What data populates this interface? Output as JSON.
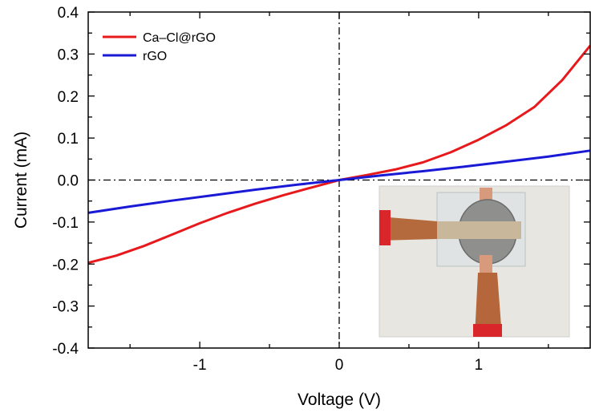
{
  "chart_data": {
    "type": "line",
    "xlabel": "Voltage (V)",
    "ylabel": "Current (mA)",
    "xlim": [
      -1.8,
      1.8
    ],
    "ylim": [
      -0.4,
      0.4
    ],
    "x_ticks": [
      {
        "value": -1,
        "label": "-1"
      },
      {
        "value": 0,
        "label": "0"
      },
      {
        "value": 1,
        "label": "1"
      }
    ],
    "y_ticks": [
      {
        "value": 0.4,
        "label": "0.4"
      },
      {
        "value": 0.3,
        "label": "0.3"
      },
      {
        "value": 0.2,
        "label": "0.2"
      },
      {
        "value": 0.1,
        "label": "0.1"
      },
      {
        "value": 0.0,
        "label": "0.0"
      },
      {
        "value": -0.1,
        "label": "-0.1"
      },
      {
        "value": -0.2,
        "label": "-0.2"
      },
      {
        "value": -0.3,
        "label": "-0.3"
      },
      {
        "value": -0.4,
        "label": "-0.4"
      }
    ],
    "grid": false,
    "legend_position": "top-left",
    "reference_lines": [
      "x=0 dash-dot",
      "y=0 dash-dot"
    ],
    "inset": "photo of device with copper clips",
    "series": [
      {
        "name": "Ca–Cl@rGO",
        "color": "#e8191c",
        "x": [
          -1.8,
          -1.6,
          -1.4,
          -1.2,
          -1.0,
          -0.8,
          -0.6,
          -0.4,
          -0.2,
          0.0,
          0.2,
          0.4,
          0.6,
          0.8,
          1.0,
          1.2,
          1.4,
          1.6,
          1.8
        ],
        "y": [
          -0.197,
          -0.18,
          -0.157,
          -0.13,
          -0.103,
          -0.078,
          -0.056,
          -0.036,
          -0.018,
          0.0,
          0.012,
          0.025,
          0.042,
          0.066,
          0.096,
          0.131,
          0.174,
          0.238,
          0.32
        ]
      },
      {
        "name": "rGO",
        "color": "#1a1ad6",
        "x": [
          -1.8,
          -1.5,
          -1.2,
          -0.9,
          -0.6,
          -0.3,
          0.0,
          0.3,
          0.6,
          0.9,
          1.2,
          1.5,
          1.8
        ],
        "y": [
          -0.078,
          -0.063,
          -0.049,
          -0.036,
          -0.023,
          -0.011,
          0.0,
          0.011,
          0.021,
          0.032,
          0.044,
          0.056,
          0.07
        ]
      }
    ]
  }
}
